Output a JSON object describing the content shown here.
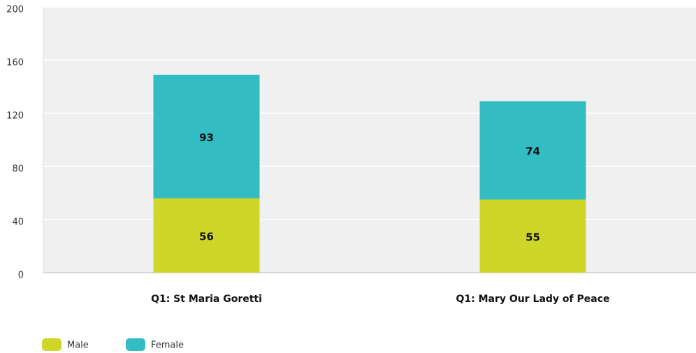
{
  "chart_data": {
    "type": "stacked_bar",
    "categories": [
      "Q1: St Maria Goretti",
      "Q1: Mary Our Lady of Peace"
    ],
    "series": [
      {
        "name": "Male",
        "color": "#cfd62a",
        "values": [
          56,
          55
        ]
      },
      {
        "name": "Female",
        "color": "#33bdc2",
        "values": [
          93,
          74
        ]
      }
    ],
    "ylim": [
      0,
      200
    ],
    "yticks": [
      0,
      40,
      80,
      120,
      160,
      200
    ],
    "grid": true,
    "legend": "bottom-left"
  }
}
